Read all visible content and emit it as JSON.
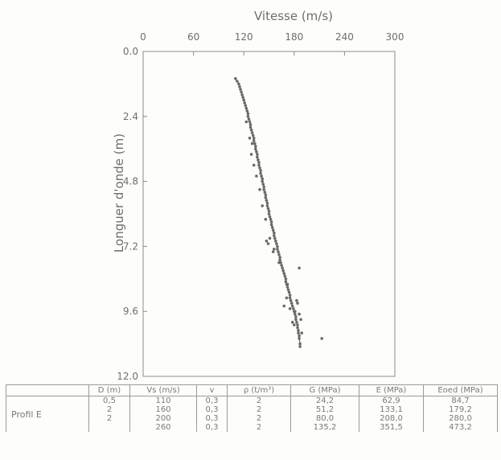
{
  "chart_data": {
    "type": "scatter",
    "title": "",
    "xlabel": "Vitesse (m/s)",
    "ylabel": "Longuer d'onde (m)",
    "xlim": [
      0,
      300
    ],
    "ylim": [
      12.0,
      0.0
    ],
    "x_axis_position": "top",
    "y_inverted": true,
    "grid": false,
    "legend": "none",
    "xticks": [
      "0",
      "60",
      "120",
      "180",
      "240",
      "300"
    ],
    "yticks": [
      "0.0",
      "2.4",
      "4.8",
      "7.2",
      "9.6",
      "12.0"
    ],
    "series": [
      {
        "points": [
          [
            110,
            1.0
          ],
          [
            112,
            1.1
          ],
          [
            114,
            1.2
          ],
          [
            115,
            1.3
          ],
          [
            116,
            1.4
          ],
          [
            117,
            1.5
          ],
          [
            118,
            1.6
          ],
          [
            119,
            1.7
          ],
          [
            120,
            1.8
          ],
          [
            121,
            1.9
          ],
          [
            122,
            2.0
          ],
          [
            123,
            2.1
          ],
          [
            124,
            2.2
          ],
          [
            125,
            2.3
          ],
          [
            125,
            2.4
          ],
          [
            126,
            2.5
          ],
          [
            127,
            2.6
          ],
          [
            128,
            2.7
          ],
          [
            128,
            2.8
          ],
          [
            129,
            2.9
          ],
          [
            130,
            3.0
          ],
          [
            131,
            3.1
          ],
          [
            132,
            3.2
          ],
          [
            132,
            3.3
          ],
          [
            133,
            3.4
          ],
          [
            134,
            3.5
          ],
          [
            134,
            3.6
          ],
          [
            135,
            3.7
          ],
          [
            136,
            3.8
          ],
          [
            136,
            3.9
          ],
          [
            137,
            4.0
          ],
          [
            138,
            4.1
          ],
          [
            138,
            4.2
          ],
          [
            139,
            4.3
          ],
          [
            140,
            4.4
          ],
          [
            140,
            4.5
          ],
          [
            141,
            4.6
          ],
          [
            142,
            4.7
          ],
          [
            142,
            4.8
          ],
          [
            143,
            4.9
          ],
          [
            144,
            5.0
          ],
          [
            144,
            5.1
          ],
          [
            145,
            5.2
          ],
          [
            146,
            5.3
          ],
          [
            146,
            5.4
          ],
          [
            147,
            5.5
          ],
          [
            148,
            5.6
          ],
          [
            148,
            5.7
          ],
          [
            149,
            5.8
          ],
          [
            150,
            5.9
          ],
          [
            150,
            6.0
          ],
          [
            151,
            6.1
          ],
          [
            152,
            6.2
          ],
          [
            153,
            6.3
          ],
          [
            153,
            6.4
          ],
          [
            154,
            6.5
          ],
          [
            155,
            6.6
          ],
          [
            156,
            6.7
          ],
          [
            156,
            6.8
          ],
          [
            157,
            6.9
          ],
          [
            158,
            7.0
          ],
          [
            159,
            7.1
          ],
          [
            160,
            7.2
          ],
          [
            160,
            7.3
          ],
          [
            161,
            7.4
          ],
          [
            162,
            7.5
          ],
          [
            163,
            7.6
          ],
          [
            163,
            7.7
          ],
          [
            164,
            7.8
          ],
          [
            165,
            7.9
          ],
          [
            166,
            8.0
          ],
          [
            167,
            8.1
          ],
          [
            168,
            8.2
          ],
          [
            169,
            8.3
          ],
          [
            170,
            8.4
          ],
          [
            170,
            8.5
          ],
          [
            171,
            8.6
          ],
          [
            172,
            8.7
          ],
          [
            173,
            8.8
          ],
          [
            174,
            8.9
          ],
          [
            175,
            9.0
          ],
          [
            175,
            9.1
          ],
          [
            176,
            9.2
          ],
          [
            177,
            9.3
          ],
          [
            178,
            9.4
          ],
          [
            179,
            9.5
          ],
          [
            180,
            9.6
          ],
          [
            181,
            9.7
          ],
          [
            182,
            9.8
          ],
          [
            182,
            9.9
          ],
          [
            183,
            10.0
          ],
          [
            184,
            10.1
          ],
          [
            184,
            10.2
          ],
          [
            185,
            10.3
          ],
          [
            185,
            10.4
          ],
          [
            186,
            10.5
          ],
          [
            186,
            10.6
          ],
          [
            187,
            10.8
          ],
          [
            187,
            10.9
          ],
          [
            130,
            3.4
          ],
          [
            129,
            3.8
          ],
          [
            132,
            4.2
          ],
          [
            135,
            4.6
          ],
          [
            146,
            6.2
          ],
          [
            151,
            6.9
          ],
          [
            147,
            7.0
          ],
          [
            149,
            7.1
          ],
          [
            155,
            7.4
          ],
          [
            156,
            7.3
          ],
          [
            162,
            7.8
          ],
          [
            172,
            8.6
          ],
          [
            175,
            9.5
          ],
          [
            168,
            9.4
          ],
          [
            171,
            9.1
          ],
          [
            183,
            9.2
          ],
          [
            188,
            9.9
          ],
          [
            186,
            9.7
          ],
          [
            184,
            9.3
          ],
          [
            181,
            9.6
          ],
          [
            186,
            8.0
          ],
          [
            213,
            10.6
          ],
          [
            178,
            10.0
          ],
          [
            189,
            10.4
          ],
          [
            180,
            10.1
          ],
          [
            123,
            2.6
          ],
          [
            127,
            3.2
          ],
          [
            139,
            5.1
          ],
          [
            142,
            5.7
          ]
        ]
      }
    ]
  },
  "table": {
    "headers": [
      "",
      "D (m)",
      "Vs (m/s)",
      "v",
      "ρ (t/m³)",
      "G (MPa)",
      "E (MPa)",
      "Eoed (MPa)"
    ],
    "row_label": "Profil  E",
    "rows": [
      [
        "0,5",
        "110",
        "0,3",
        "2",
        "24,2",
        "62,9",
        "84,7"
      ],
      [
        "2",
        "160",
        "0,3",
        "2",
        "51,2",
        "133,1",
        "179,2"
      ],
      [
        "2",
        "200",
        "0,3",
        "2",
        "80,0",
        "208,0",
        "280,0"
      ],
      [
        "",
        "260",
        "0,3",
        "2",
        "135,2",
        "351,5",
        "473,2"
      ]
    ]
  }
}
